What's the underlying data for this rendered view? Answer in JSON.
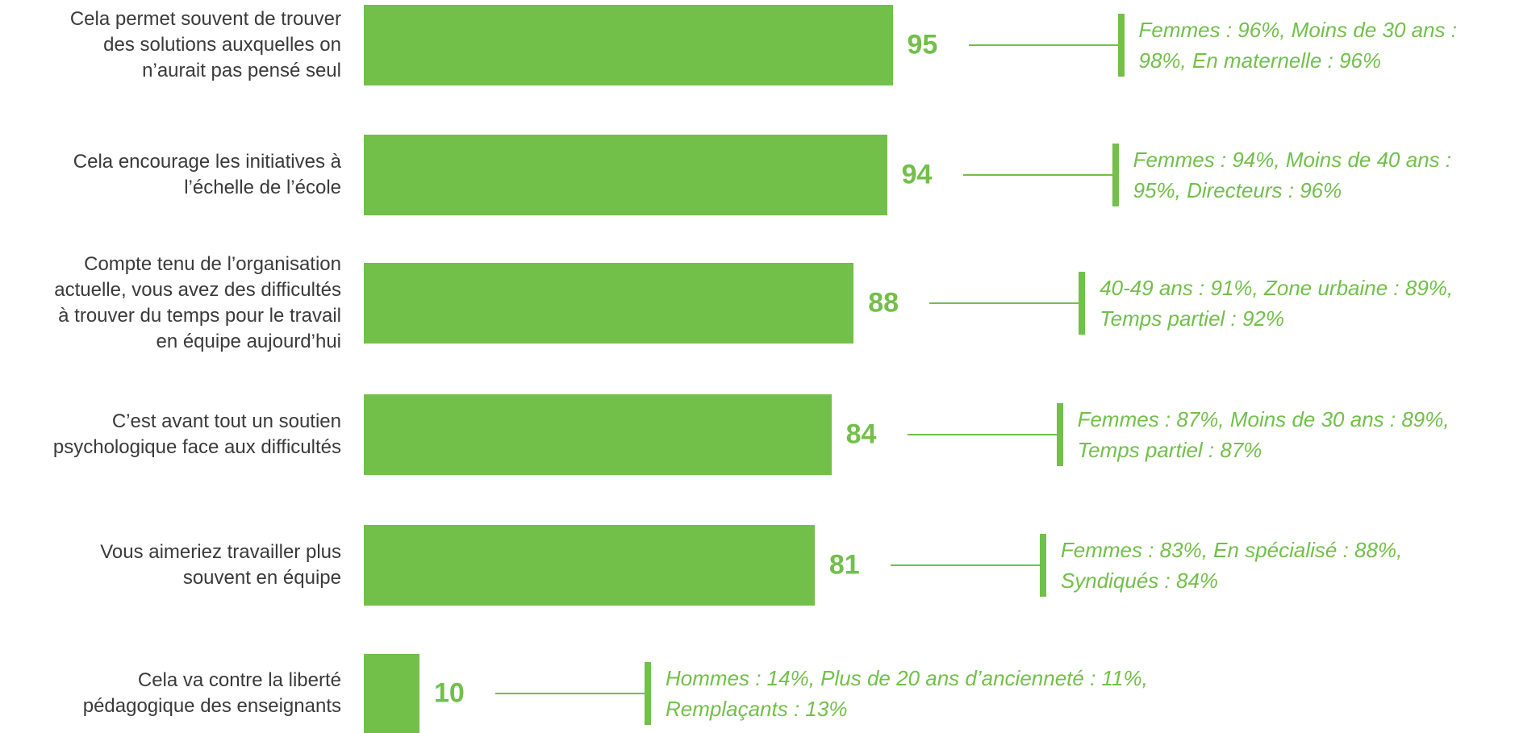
{
  "colors": {
    "bar": "#72bf4a",
    "value_text": "#72bf4a",
    "note_text": "#72bf4a",
    "label_text": "#3a3a3a"
  },
  "chart_data": {
    "type": "bar",
    "orientation": "horizontal",
    "title": "",
    "xlabel": "",
    "ylabel": "",
    "xlim": [
      0,
      100
    ],
    "grid": false,
    "legend": "none",
    "categories": [
      "Cela permet souvent de trouver des solutions auxquelles on n’aurait pas pensé seul",
      "Cela encourage les initiatives à l’échelle de l’école",
      "Compte tenu de l’organisation actuelle, vous avez des difficultés à trouver du temps pour le travail en équipe aujourd’hui",
      "C’est avant tout un soutien psychologique face aux difficultés",
      "Vous aimeriez travailler plus souvent en équipe",
      "Cela va contre la liberté pédagogique des enseignants"
    ],
    "values": [
      95,
      94,
      88,
      84,
      81,
      10
    ],
    "data_labels": [
      "95",
      "94",
      "88",
      "84",
      "81",
      "10"
    ],
    "annotations": [
      [
        "Femmes : 96%, Moins de 30 ans :",
        "98%, En maternelle : 96%"
      ],
      [
        "Femmes : 94%, Moins de 40 ans :",
        "95%, Directeurs : 96%"
      ],
      [
        "40-49 ans : 91%, Zone urbaine : 89%,",
        "Temps partiel : 92%"
      ],
      [
        "Femmes : 87%, Moins de 30 ans : 89%,",
        "Temps partiel : 87%"
      ],
      [
        "Femmes : 83%, En spécialisé : 88%,",
        "Syndiqués : 84%"
      ],
      [
        "Hommes : 14%, Plus de 20 ans d’ancienneté : 11%,",
        "Remplaçants : 13%"
      ]
    ]
  },
  "row_labels": [
    [
      "Cela permet souvent de trouver",
      "des solutions auxquelles on",
      "n’aurait pas pensé seul"
    ],
    [
      "Cela encourage les initiatives à",
      "l’échelle de l’école"
    ],
    [
      "Compte tenu de l’organisation",
      "actuelle, vous avez des difficultés",
      "à trouver du temps pour le travail",
      "en équipe aujourd’hui"
    ],
    [
      "C’est avant tout un soutien",
      "psychologique face aux difficultés"
    ],
    [
      "Vous aimeriez travailler plus",
      "souvent en équipe"
    ],
    [
      "Cela va contre la liberté",
      "pédagogique des enseignants"
    ]
  ]
}
